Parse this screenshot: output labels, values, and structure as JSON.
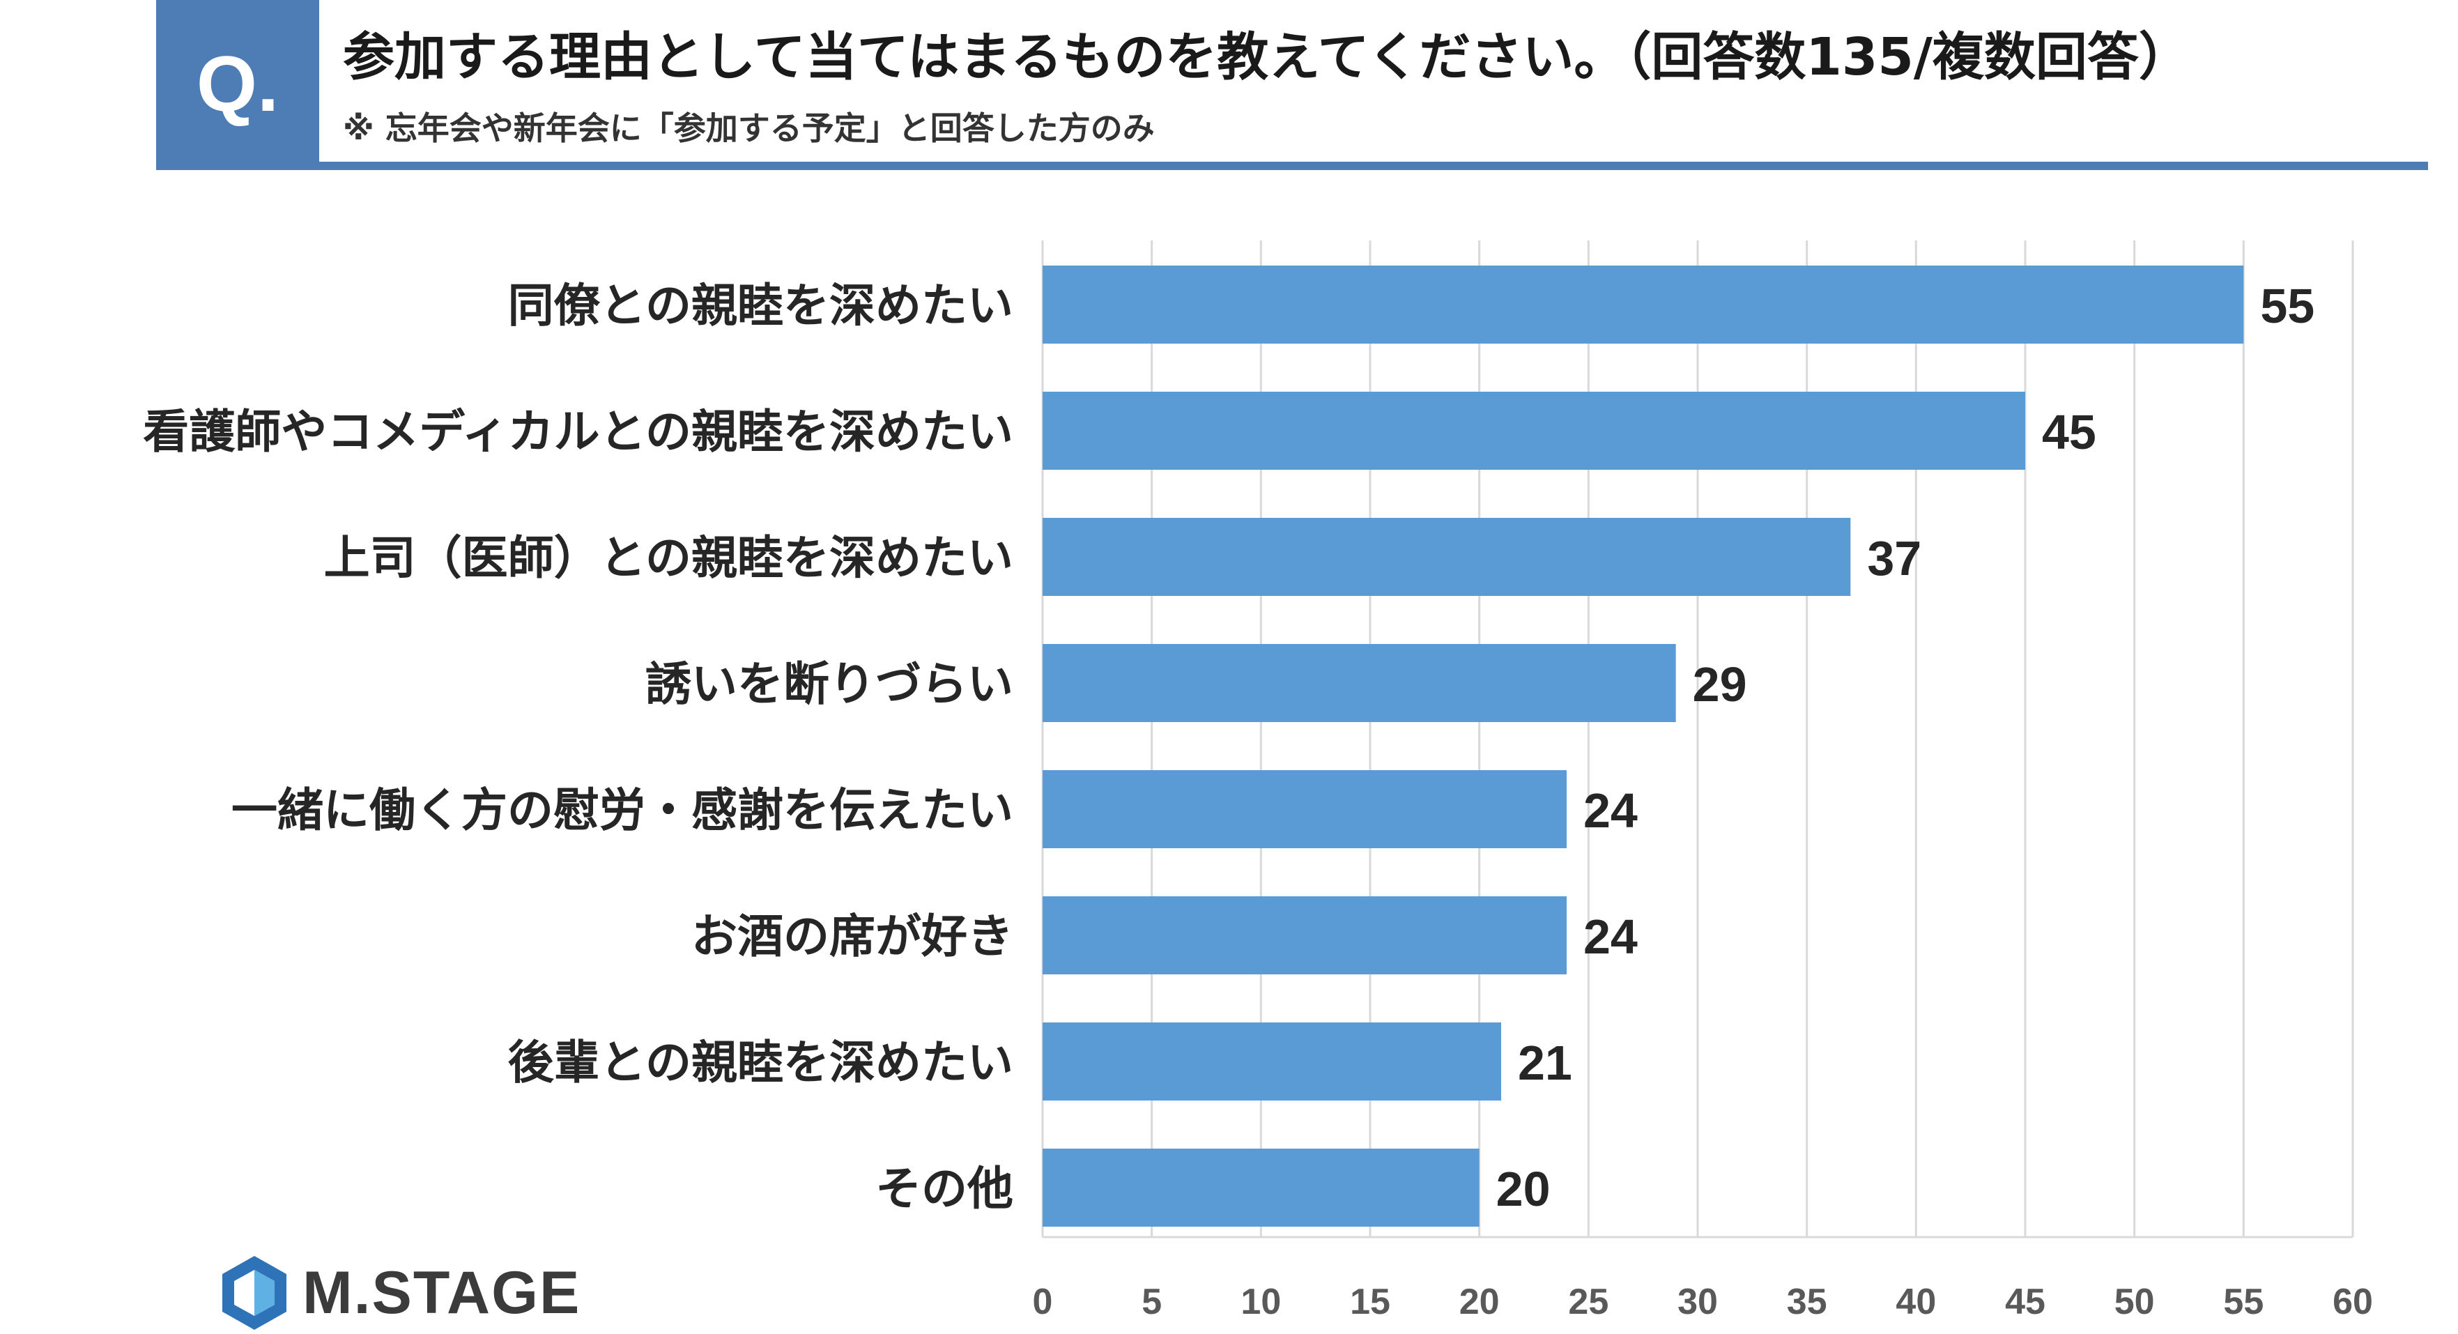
{
  "header": {
    "q_label": "Q.",
    "title": "参加する理由として当てはまるものを教えてください。（回答数135/複数回答）",
    "subtitle": "※ 忘年会や新年会に「参加する予定」と回答した方のみ"
  },
  "logo": {
    "text": "M.STAGE"
  },
  "colors": {
    "bar": "#5b9bd5",
    "header_accent": "#4e7db5",
    "grid": "#d9d9d9"
  },
  "chart_data": {
    "type": "bar",
    "orientation": "horizontal",
    "categories": [
      "同僚との親睦を深めたい",
      "看護師やコメディカルとの親睦を深めたい",
      "上司（医師）との親睦を深めたい",
      "誘いを断りづらい",
      "一緒に働く方の慰労・感謝を伝えたい",
      "お酒の席が好き",
      "後輩との親睦を深めたい",
      "その他"
    ],
    "values": [
      55,
      45,
      37,
      29,
      24,
      24,
      21,
      20
    ],
    "xlim": [
      0,
      60
    ],
    "ticks": [
      0,
      5,
      10,
      15,
      20,
      25,
      30,
      35,
      40,
      45,
      50,
      55,
      60
    ],
    "grid": true,
    "data_labels": true
  }
}
